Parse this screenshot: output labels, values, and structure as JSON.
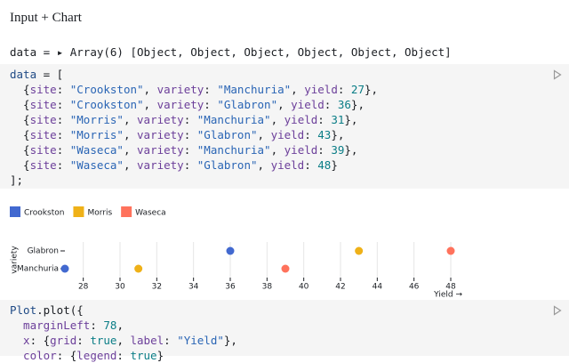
{
  "header": {
    "title": "Input + Chart"
  },
  "code_colors": {
    "plain": "#1b1e23",
    "def": "#1f4a85",
    "prop": "#6c3f9a",
    "str": "#2a65b5",
    "num": "#0a7d86"
  },
  "inspector": [
    [
      "data",
      "plain"
    ],
    [
      " = ",
      "plain"
    ],
    [
      "▸",
      "plain"
    ],
    [
      " Array(6) [Object, Object, Object, Object, Object, Object]",
      "plain"
    ]
  ],
  "cell_1": [
    [
      [
        "data",
        "def"
      ],
      [
        " = [",
        "plain"
      ]
    ],
    [
      [
        "  {",
        "plain"
      ],
      [
        "site",
        "prop"
      ],
      [
        ": ",
        "plain"
      ],
      [
        "\"Crookston\"",
        "str"
      ],
      [
        ", ",
        "plain"
      ],
      [
        "variety",
        "prop"
      ],
      [
        ": ",
        "plain"
      ],
      [
        "\"Manchuria\"",
        "str"
      ],
      [
        ", ",
        "plain"
      ],
      [
        "yield",
        "prop"
      ],
      [
        ": ",
        "plain"
      ],
      [
        "27",
        "num"
      ],
      [
        "},",
        "plain"
      ]
    ],
    [
      [
        "  {",
        "plain"
      ],
      [
        "site",
        "prop"
      ],
      [
        ": ",
        "plain"
      ],
      [
        "\"Crookston\"",
        "str"
      ],
      [
        ", ",
        "plain"
      ],
      [
        "variety",
        "prop"
      ],
      [
        ": ",
        "plain"
      ],
      [
        "\"Glabron\"",
        "str"
      ],
      [
        ", ",
        "plain"
      ],
      [
        "yield",
        "prop"
      ],
      [
        ": ",
        "plain"
      ],
      [
        "36",
        "num"
      ],
      [
        "},",
        "plain"
      ]
    ],
    [
      [
        "  {",
        "plain"
      ],
      [
        "site",
        "prop"
      ],
      [
        ": ",
        "plain"
      ],
      [
        "\"Morris\"",
        "str"
      ],
      [
        ", ",
        "plain"
      ],
      [
        "variety",
        "prop"
      ],
      [
        ": ",
        "plain"
      ],
      [
        "\"Manchuria\"",
        "str"
      ],
      [
        ", ",
        "plain"
      ],
      [
        "yield",
        "prop"
      ],
      [
        ": ",
        "plain"
      ],
      [
        "31",
        "num"
      ],
      [
        "},",
        "plain"
      ]
    ],
    [
      [
        "  {",
        "plain"
      ],
      [
        "site",
        "prop"
      ],
      [
        ": ",
        "plain"
      ],
      [
        "\"Morris\"",
        "str"
      ],
      [
        ", ",
        "plain"
      ],
      [
        "variety",
        "prop"
      ],
      [
        ": ",
        "plain"
      ],
      [
        "\"Glabron\"",
        "str"
      ],
      [
        ", ",
        "plain"
      ],
      [
        "yield",
        "prop"
      ],
      [
        ": ",
        "plain"
      ],
      [
        "43",
        "num"
      ],
      [
        "},",
        "plain"
      ]
    ],
    [
      [
        "  {",
        "plain"
      ],
      [
        "site",
        "prop"
      ],
      [
        ": ",
        "plain"
      ],
      [
        "\"Waseca\"",
        "str"
      ],
      [
        ", ",
        "plain"
      ],
      [
        "variety",
        "prop"
      ],
      [
        ": ",
        "plain"
      ],
      [
        "\"Manchuria\"",
        "str"
      ],
      [
        ", ",
        "plain"
      ],
      [
        "yield",
        "prop"
      ],
      [
        ": ",
        "plain"
      ],
      [
        "39",
        "num"
      ],
      [
        "},",
        "plain"
      ]
    ],
    [
      [
        "  {",
        "plain"
      ],
      [
        "site",
        "prop"
      ],
      [
        ": ",
        "plain"
      ],
      [
        "\"Waseca\"",
        "str"
      ],
      [
        ", ",
        "plain"
      ],
      [
        "variety",
        "prop"
      ],
      [
        ": ",
        "plain"
      ],
      [
        "\"Glabron\"",
        "str"
      ],
      [
        ", ",
        "plain"
      ],
      [
        "yield",
        "prop"
      ],
      [
        ": ",
        "plain"
      ],
      [
        "48",
        "num"
      ],
      [
        "}",
        "plain"
      ]
    ],
    [
      [
        "];",
        "plain"
      ]
    ]
  ],
  "cell_2": [
    [
      [
        "Plot",
        "def"
      ],
      [
        ".plot({",
        "plain"
      ]
    ],
    [
      [
        "  marginLeft",
        "prop"
      ],
      [
        ": ",
        "plain"
      ],
      [
        "78",
        "num"
      ],
      [
        ",",
        "plain"
      ]
    ],
    [
      [
        "  x",
        "prop"
      ],
      [
        ": {",
        "plain"
      ],
      [
        "grid",
        "prop"
      ],
      [
        ": ",
        "plain"
      ],
      [
        "true",
        "num"
      ],
      [
        ", ",
        "plain"
      ],
      [
        "label",
        "prop"
      ],
      [
        ": ",
        "plain"
      ],
      [
        "\"Yield\"",
        "str"
      ],
      [
        "},",
        "plain"
      ]
    ],
    [
      [
        "  color",
        "prop"
      ],
      [
        ": {",
        "plain"
      ],
      [
        "legend",
        "prop"
      ],
      [
        ": ",
        "plain"
      ],
      [
        "true",
        "num"
      ],
      [
        "}",
        "plain"
      ]
    ]
  ],
  "chart_data": {
    "type": "dot",
    "ylabel": "variety",
    "xlabel": "Yield →",
    "categories": [
      "Glabron",
      "Manchuria"
    ],
    "series": [
      {
        "name": "Crookston",
        "color": "#4269d0",
        "values": [
          36,
          27
        ]
      },
      {
        "name": "Morris",
        "color": "#efb118",
        "values": [
          43,
          31
        ]
      },
      {
        "name": "Waseca",
        "color": "#ff725c",
        "values": [
          48,
          39
        ]
      }
    ],
    "xlim": [
      27,
      48
    ],
    "xticks": [
      28,
      30,
      32,
      34,
      36,
      38,
      40,
      42,
      44,
      46,
      48
    ],
    "grid": true
  }
}
